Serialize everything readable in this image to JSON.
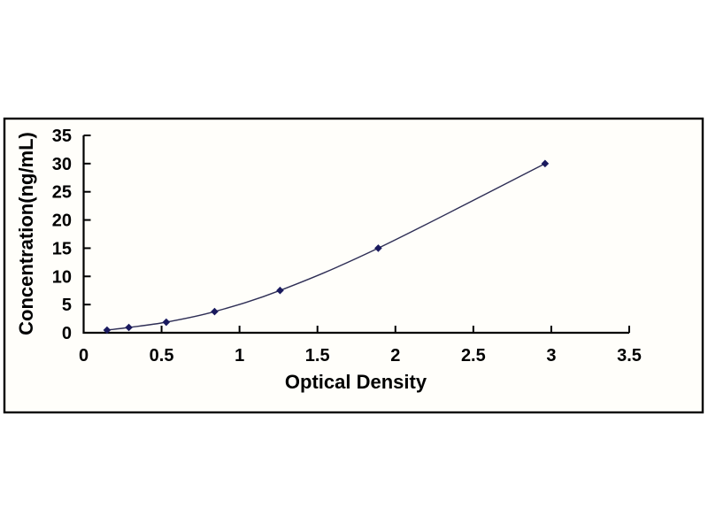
{
  "figure": {
    "description": "ELISA standard curve plot",
    "background": "#ffffff"
  },
  "chart_data": {
    "type": "line",
    "title": "",
    "xlabel": "Optical Density",
    "ylabel": "Concentration(ng/mL)",
    "x": [
      0.15,
      0.29,
      0.53,
      0.84,
      1.26,
      1.89,
      2.96
    ],
    "series": [
      {
        "name": "standard curve",
        "values": [
          0.47,
          0.94,
          1.88,
          3.75,
          7.5,
          15,
          30
        ]
      }
    ],
    "xlim": [
      0,
      3.5
    ],
    "ylim": [
      0,
      35
    ],
    "x_tick_values": [
      0,
      0.5,
      1,
      1.5,
      2,
      2.5,
      3,
      3.5
    ],
    "x_tick_labels": [
      "0",
      "0.5",
      "1",
      "1.5",
      "2",
      "2.5",
      "3",
      "3.5"
    ],
    "y_tick_values": [
      0,
      5,
      10,
      15,
      20,
      25,
      30,
      35
    ],
    "y_tick_labels": [
      "0",
      "5",
      "10",
      "15",
      "20",
      "25",
      "30",
      "35"
    ],
    "grid": false,
    "legend": "none",
    "marker": "diamond",
    "smooth": true,
    "colors": {
      "line": "#2e2e55",
      "marker": "#1a1a5e",
      "axis": "#000000",
      "tick_text": "#000000",
      "frame": "#000000",
      "plot_bg": "#fffefa",
      "page_bg": "#ffffff"
    }
  }
}
